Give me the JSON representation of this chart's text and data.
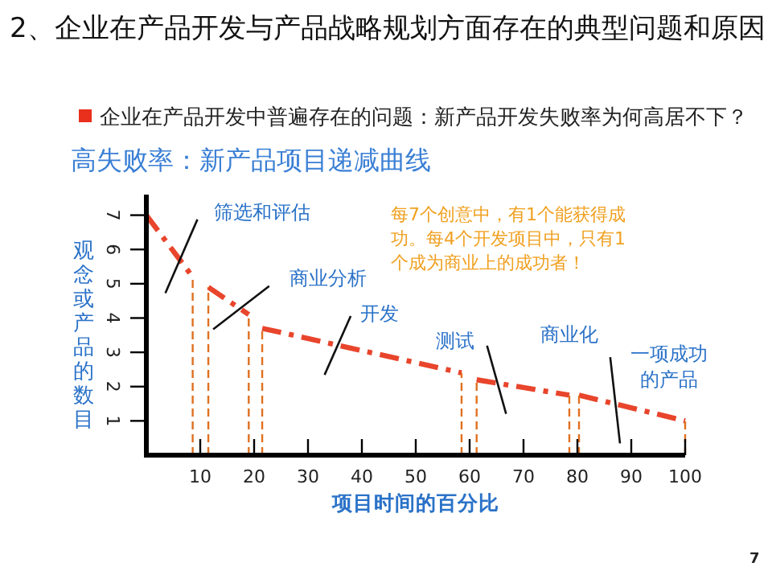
{
  "chart_data": {
    "type": "line",
    "title": "2、企业在产品开发与产品战略规划方面存在的典型问题和原因",
    "subtitle": "企业在产品开发中普遍存在的问题：新产品开发失败率为何高居不下？",
    "xlabel": "项目时间的百分比",
    "ylabel": "观念或产品的数目",
    "xlim": [
      0,
      100
    ],
    "xticks": [
      10,
      20,
      30,
      40,
      50,
      60,
      70,
      80,
      90,
      100
    ],
    "ylim": [
      0,
      7.6
    ],
    "yticks": [
      1,
      2,
      3,
      4,
      5,
      6,
      7
    ],
    "grid": false,
    "marker": "none",
    "series": [
      {
        "color": "#e8452c",
        "line_style": "dashed",
        "x": [
          0,
          8.6
        ],
        "values": [
          7,
          5.2
        ]
      },
      {
        "color": "#e8452c",
        "line_style": "dashed",
        "x": [
          11.5,
          19
        ],
        "values": [
          4.9,
          4.1
        ]
      },
      {
        "color": "#e8452c",
        "line_style": "dashed",
        "x": [
          21.5,
          58.5
        ],
        "values": [
          3.7,
          2.4
        ]
      },
      {
        "color": "#e8452c",
        "line_style": "dashed",
        "x": [
          61.3,
          78.5
        ],
        "values": [
          2.2,
          1.75
        ]
      },
      {
        "color": "#e8452c",
        "line_style": "dashed",
        "x": [
          80.3,
          100
        ],
        "values": [
          1.75,
          1.0
        ]
      },
      {
        "color": "#e07020",
        "line_style": "dotted",
        "x": [
          8.6,
          8.6
        ],
        "values": [
          0,
          5.2
        ]
      },
      {
        "color": "#e07020",
        "line_style": "dotted",
        "x": [
          11.5,
          11.5
        ],
        "values": [
          0,
          4.9
        ]
      },
      {
        "color": "#e07020",
        "line_style": "dotted",
        "x": [
          19,
          19
        ],
        "values": [
          0,
          4.1
        ]
      },
      {
        "color": "#e07020",
        "line_style": "dotted",
        "x": [
          21.5,
          21.5
        ],
        "values": [
          0,
          3.7
        ]
      },
      {
        "color": "#e07020",
        "line_style": "dotted",
        "x": [
          58.5,
          58.5
        ],
        "values": [
          0,
          2.4
        ]
      },
      {
        "color": "#e07020",
        "line_style": "dotted",
        "x": [
          61.3,
          61.3
        ],
        "values": [
          0,
          2.2
        ]
      },
      {
        "color": "#e07020",
        "line_style": "dotted",
        "x": [
          78.5,
          78.5
        ],
        "values": [
          0,
          1.75
        ]
      },
      {
        "color": "#e07020",
        "line_style": "dotted",
        "x": [
          80.3,
          80.3
        ],
        "values": [
          0,
          1.75
        ]
      },
      {
        "color": "#e07020",
        "line_style": "dotted",
        "x": [
          100,
          100
        ],
        "values": [
          0,
          1.0
        ]
      }
    ],
    "annotations": [
      "高失败率：新产品项目递减曲线",
      "每7个创意中，有1个能获得成功。每4个开发项目中，只有1个成为商业上的成功者！",
      {
        "text": "筛选和评估",
        "x": 6.5,
        "y": 5.8
      },
      {
        "text": "商业分析",
        "x": 17.6,
        "y": 4.3
      },
      {
        "text": "开发",
        "x": 35.5,
        "y": 3.2
      },
      {
        "text": "测试",
        "x": 65,
        "y": 2.2
      },
      {
        "text": "商业化",
        "x": 87,
        "y": 1.6
      },
      {
        "text": "一项成功的产品",
        "x": 100,
        "y": 1.0
      },
      "7"
    ]
  }
}
